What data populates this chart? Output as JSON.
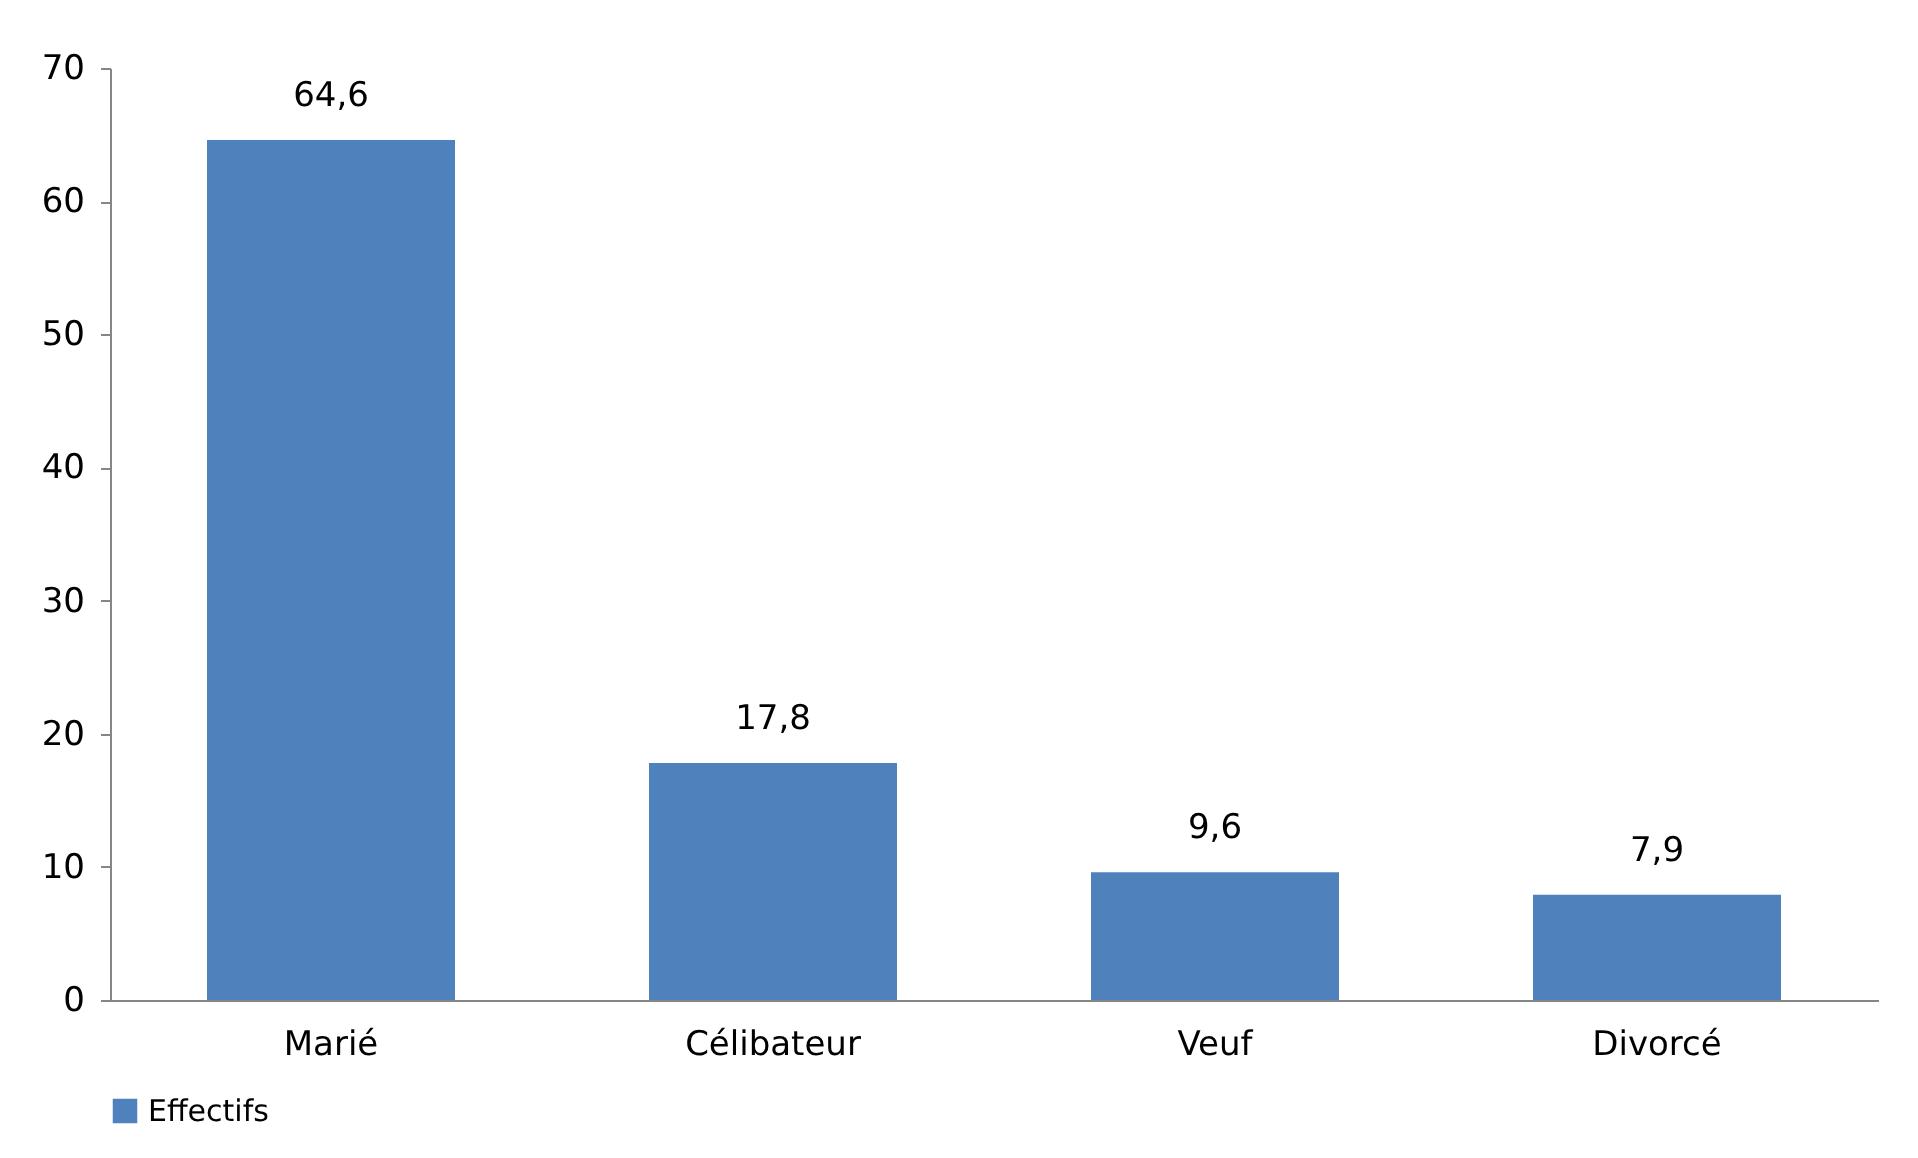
{
  "chart_data": {
    "type": "bar",
    "categories": [
      "Marié",
      "Célibateur",
      "Veuf",
      "Divorcé"
    ],
    "series": [
      {
        "name": "Effectifs",
        "color": "#4f81bd",
        "values": [
          64.6,
          17.8,
          9.6,
          7.9
        ],
        "value_labels": [
          "64,6",
          "17,8",
          "9,6",
          "7,9"
        ]
      }
    ],
    "ylim": [
      0,
      70
    ],
    "yticks": [
      0,
      10,
      20,
      30,
      40,
      50,
      60,
      70
    ],
    "grid": false,
    "legend": "bottom"
  }
}
